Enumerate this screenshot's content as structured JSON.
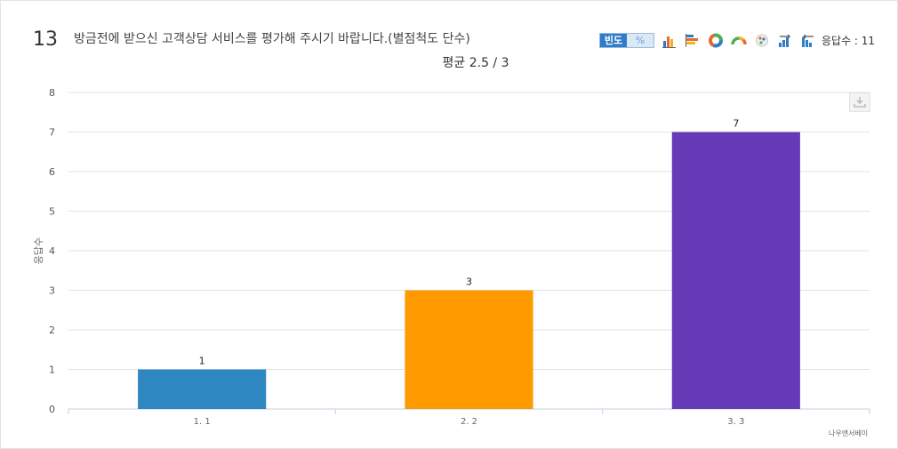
{
  "question": {
    "number": "13",
    "text": "방금전에 받으신 고객상담 서비스를 평가해 주시기 바랍니다.(별점척도 단수)"
  },
  "toolbar": {
    "freq_label": "빈도",
    "pct_label": "%",
    "icons": [
      "bar-chart-icon",
      "horizontal-bar-icon",
      "donut-chart-icon",
      "half-donut-icon",
      "pie-chart-icon",
      "sort-ascending-icon",
      "sort-descending-icon"
    ],
    "response_count": "응답수 : 11"
  },
  "summary": {
    "average": "평균 2.5 / 3"
  },
  "credit": "나우앤서베이",
  "chart_data": {
    "type": "bar",
    "title": "",
    "xlabel": "",
    "ylabel": "응답수",
    "categories": [
      "1. 1",
      "2. 2",
      "3. 3"
    ],
    "values": [
      1,
      3,
      7
    ],
    "colors": [
      "#2f87c1",
      "#ff9900",
      "#673ab7"
    ],
    "ylim": [
      0,
      8
    ],
    "yticks": [
      0,
      1,
      2,
      3,
      4,
      5,
      6,
      7,
      8
    ],
    "grid": true,
    "data_labels": true
  }
}
